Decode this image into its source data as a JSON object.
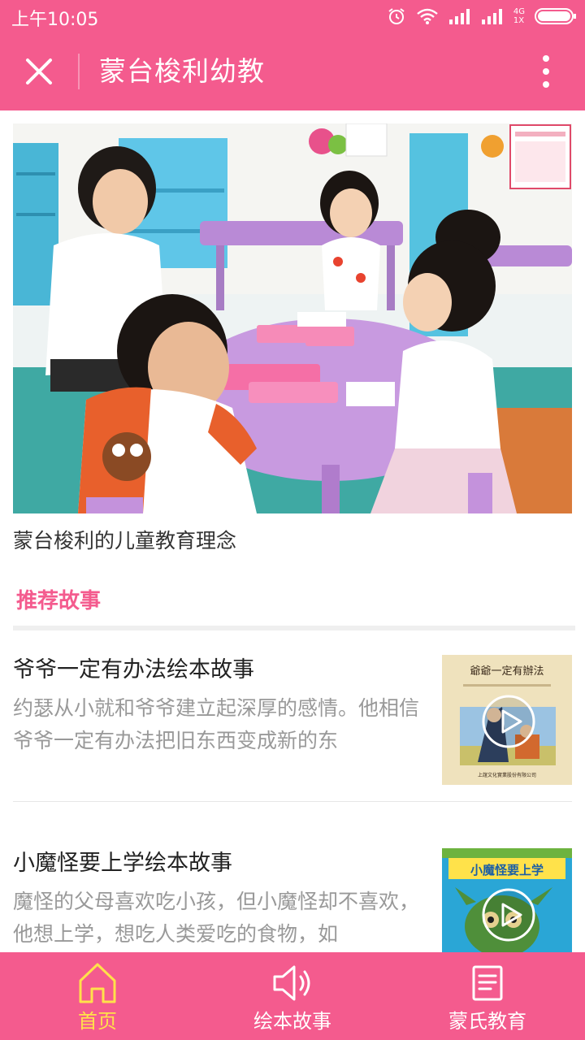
{
  "colors": {
    "brand": "#f45b8e",
    "active_tab": "#ffe14a",
    "muted_text": "#999999"
  },
  "status_bar": {
    "time": "上午10:05",
    "network_label_top": "4G",
    "network_label_bottom": "1X",
    "icons": [
      "alarm-icon",
      "wifi-icon",
      "signal-icon",
      "signal-icon",
      "battery-icon"
    ]
  },
  "app_bar": {
    "title": "蒙台梭利幼教",
    "close_icon": "close-icon",
    "more_icon": "more-vertical-icon"
  },
  "hero": {
    "image_desc": "classroom-photo",
    "caption": "蒙台梭利的儿童教育理念"
  },
  "section": {
    "title": "推荐故事"
  },
  "stories": [
    {
      "title": "爷爷一定有办法绘本故事",
      "desc": "约瑟从小就和爷爷建立起深厚的感情。他相信爷爷一定有办法把旧东西变成新的东",
      "thumb_title": "爺爺一定有辦法",
      "thumb_footer": "上誼文化實業股份有限公司"
    },
    {
      "title": "小魔怪要上学绘本故事",
      "desc": "魔怪的父母喜欢吃小孩，但小魔怪却不喜欢，他想上学，想吃人类爱吃的食物，如",
      "thumb_title": "小魔怪要上学"
    }
  ],
  "tabs": [
    {
      "label": "首页",
      "icon": "home-icon",
      "active": true
    },
    {
      "label": "绘本故事",
      "icon": "speaker-icon",
      "active": false
    },
    {
      "label": "蒙氏教育",
      "icon": "document-icon",
      "active": false
    }
  ]
}
